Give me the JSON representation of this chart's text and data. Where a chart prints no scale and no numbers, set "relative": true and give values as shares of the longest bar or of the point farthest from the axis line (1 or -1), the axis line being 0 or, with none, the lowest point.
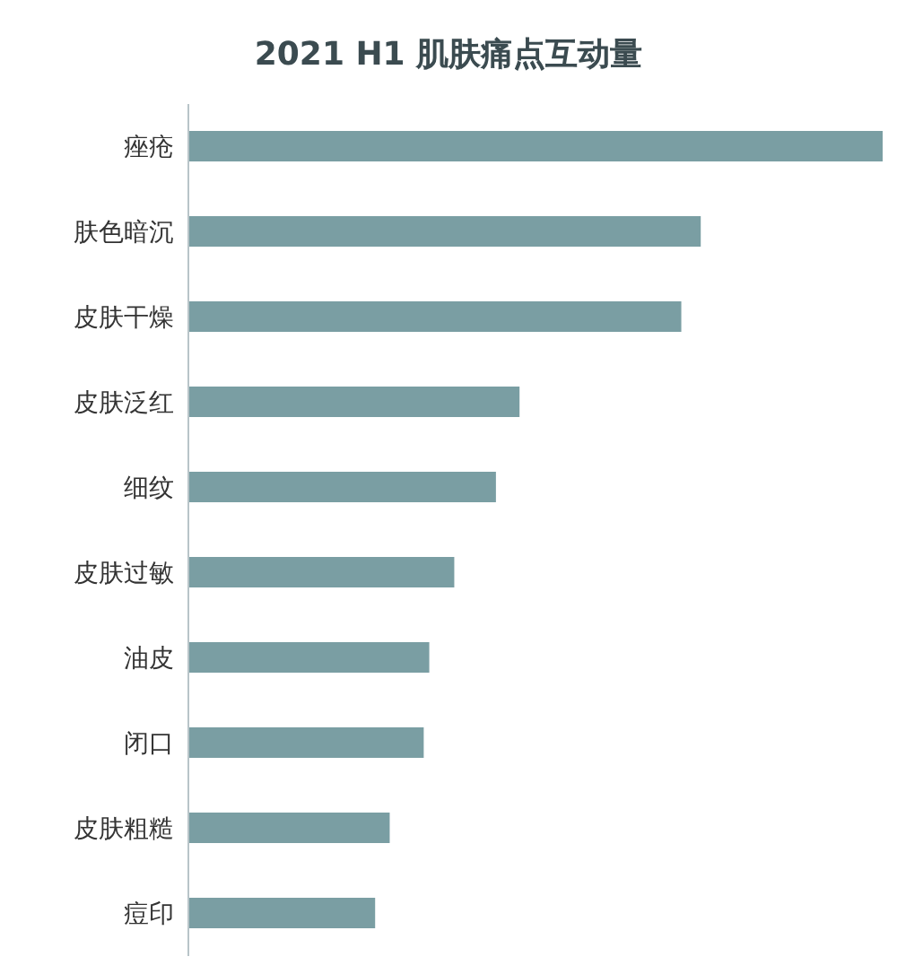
{
  "chart_data": {
    "type": "bar",
    "orientation": "horizontal",
    "relative": true,
    "title": "2021 H1 肌肤痛点互动量",
    "categories": [
      "痤疮",
      "肤色暗沉",
      "皮肤干燥",
      "皮肤泛红",
      "细纹",
      "皮肤过敏",
      "油皮",
      "闭口",
      "皮肤粗糙",
      "痘印"
    ],
    "values": [
      1,
      0.738,
      0.71,
      0.477,
      0.443,
      0.383,
      0.347,
      0.339,
      0.29,
      0.269
    ],
    "color": "#7a9ea3"
  }
}
